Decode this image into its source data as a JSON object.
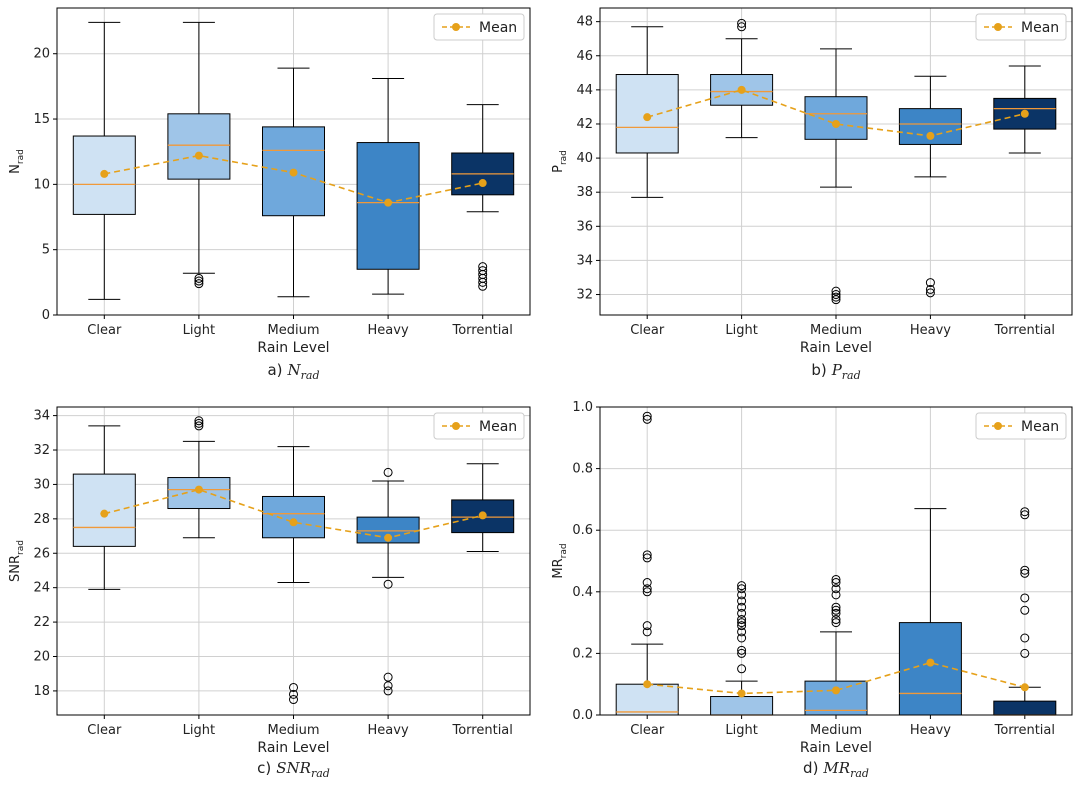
{
  "chart_data": [
    {
      "type": "box",
      "panel": "a",
      "caption_prefix": "a)",
      "caption_main": "N",
      "caption_sub": "rad",
      "ylabel_main": "N",
      "ylabel_sub": "rad",
      "xlabel": "Rain Level",
      "ylim": [
        0,
        23.5
      ],
      "yticks": [
        0,
        5,
        10,
        15,
        20
      ],
      "ytick_labels": [
        "0",
        "5",
        "10",
        "15",
        "20"
      ],
      "categories": [
        "Clear",
        "Light",
        "Medium",
        "Heavy",
        "Torrential"
      ],
      "legend": "Mean",
      "legend_position": "top-right",
      "grid": true,
      "boxes": [
        {
          "low": 1.2,
          "q1": 7.7,
          "median": 10.0,
          "q3": 13.7,
          "high": 22.4,
          "mean": 10.8,
          "outliers": []
        },
        {
          "low": 3.2,
          "q1": 10.4,
          "median": 13.0,
          "q3": 15.4,
          "high": 22.4,
          "mean": 12.2,
          "outliers": [
            2.4,
            2.6,
            2.8
          ]
        },
        {
          "low": 1.4,
          "q1": 7.6,
          "median": 12.6,
          "q3": 14.4,
          "high": 18.9,
          "mean": 10.9,
          "outliers": []
        },
        {
          "low": 1.6,
          "q1": 3.5,
          "median": 8.6,
          "q3": 13.2,
          "high": 18.1,
          "mean": 8.6,
          "outliers": []
        },
        {
          "low": 7.9,
          "q1": 9.2,
          "median": 10.8,
          "q3": 12.4,
          "high": 16.1,
          "mean": 10.1,
          "outliers": [
            2.2,
            2.5,
            2.8,
            3.1,
            3.4,
            3.7
          ]
        }
      ]
    },
    {
      "type": "box",
      "panel": "b",
      "caption_prefix": "b)",
      "caption_main": "P",
      "caption_sub": "rad",
      "ylabel_main": "P",
      "ylabel_sub": "rad",
      "xlabel": "Rain Level",
      "ylim": [
        30.8,
        48.8
      ],
      "yticks": [
        32,
        34,
        36,
        38,
        40,
        42,
        44,
        46,
        48
      ],
      "ytick_labels": [
        "32",
        "34",
        "36",
        "38",
        "40",
        "42",
        "44",
        "46",
        "48"
      ],
      "categories": [
        "Clear",
        "Light",
        "Medium",
        "Heavy",
        "Torrential"
      ],
      "legend": "Mean",
      "legend_position": "top-right",
      "grid": true,
      "boxes": [
        {
          "low": 37.7,
          "q1": 40.3,
          "median": 41.8,
          "q3": 44.9,
          "high": 47.7,
          "mean": 42.4,
          "outliers": []
        },
        {
          "low": 41.2,
          "q1": 43.1,
          "median": 43.9,
          "q3": 44.9,
          "high": 47.0,
          "mean": 44.0,
          "outliers": [
            47.7,
            47.9
          ]
        },
        {
          "low": 38.3,
          "q1": 41.1,
          "median": 42.6,
          "q3": 43.6,
          "high": 46.4,
          "mean": 42.0,
          "outliers": [
            31.7,
            31.85,
            32.0,
            32.2
          ]
        },
        {
          "low": 38.9,
          "q1": 40.8,
          "median": 42.0,
          "q3": 42.9,
          "high": 44.8,
          "mean": 41.3,
          "outliers": [
            32.1,
            32.3,
            32.7
          ]
        },
        {
          "low": 40.3,
          "q1": 41.7,
          "median": 42.9,
          "q3": 43.5,
          "high": 45.4,
          "mean": 42.6,
          "outliers": []
        }
      ]
    },
    {
      "type": "box",
      "panel": "c",
      "caption_prefix": "c)",
      "caption_main": "SNR",
      "caption_sub": "rad",
      "ylabel_main": "SNR",
      "ylabel_sub": "rad",
      "xlabel": "Rain Level",
      "ylim": [
        16.6,
        34.5
      ],
      "yticks": [
        18,
        20,
        22,
        24,
        26,
        28,
        30,
        32,
        34
      ],
      "ytick_labels": [
        "18",
        "20",
        "22",
        "24",
        "26",
        "28",
        "30",
        "32",
        "34"
      ],
      "categories": [
        "Clear",
        "Light",
        "Medium",
        "Heavy",
        "Torrential"
      ],
      "legend": "Mean",
      "legend_position": "top-right",
      "grid": true,
      "boxes": [
        {
          "low": 23.9,
          "q1": 26.4,
          "median": 27.5,
          "q3": 30.6,
          "high": 33.4,
          "mean": 28.3,
          "outliers": []
        },
        {
          "low": 26.9,
          "q1": 28.6,
          "median": 29.7,
          "q3": 30.4,
          "high": 32.5,
          "mean": 29.7,
          "outliers": [
            33.4,
            33.55,
            33.7
          ]
        },
        {
          "low": 24.3,
          "q1": 26.9,
          "median": 28.3,
          "q3": 29.3,
          "high": 32.2,
          "mean": 27.8,
          "outliers": [
            17.5,
            17.8,
            18.2
          ]
        },
        {
          "low": 24.6,
          "q1": 26.6,
          "median": 27.3,
          "q3": 28.1,
          "high": 30.2,
          "mean": 26.9,
          "outliers": [
            30.7,
            24.2,
            18.0,
            18.3,
            18.8
          ]
        },
        {
          "low": 26.1,
          "q1": 27.2,
          "median": 28.1,
          "q3": 29.1,
          "high": 31.2,
          "mean": 28.2,
          "outliers": []
        }
      ]
    },
    {
      "type": "box",
      "panel": "d",
      "caption_prefix": "d)",
      "caption_main": "MR",
      "caption_sub": "rad",
      "ylabel_main": "MR",
      "ylabel_sub": "rad",
      "xlabel": "Rain Level",
      "ylim": [
        0,
        1.0
      ],
      "yticks": [
        0,
        0.2,
        0.4,
        0.6,
        0.8,
        1.0
      ],
      "ytick_labels": [
        "0.0",
        "0.2",
        "0.4",
        "0.6",
        "0.8",
        "1.0"
      ],
      "categories": [
        "Clear",
        "Light",
        "Medium",
        "Heavy",
        "Torrential"
      ],
      "legend": "Mean",
      "legend_position": "top-right",
      "grid": true,
      "boxes": [
        {
          "low": 0,
          "q1": 0,
          "median": 0.01,
          "q3": 0.1,
          "high": 0.23,
          "mean": 0.1,
          "outliers": [
            0.27,
            0.29,
            0.4,
            0.41,
            0.43,
            0.51,
            0.52,
            0.96,
            0.97
          ]
        },
        {
          "low": 0,
          "q1": 0,
          "median": 0.0,
          "q3": 0.06,
          "high": 0.11,
          "mean": 0.07,
          "outliers": [
            0.15,
            0.2,
            0.21,
            0.25,
            0.27,
            0.29,
            0.3,
            0.31,
            0.33,
            0.35,
            0.37,
            0.39,
            0.41,
            0.42
          ]
        },
        {
          "low": 0,
          "q1": 0,
          "median": 0.015,
          "q3": 0.11,
          "high": 0.27,
          "mean": 0.08,
          "outliers": [
            0.3,
            0.31,
            0.33,
            0.34,
            0.35,
            0.39,
            0.41,
            0.43,
            0.44
          ]
        },
        {
          "low": 0,
          "q1": 0,
          "median": 0.07,
          "q3": 0.3,
          "high": 0.67,
          "mean": 0.17,
          "outliers": []
        },
        {
          "low": 0,
          "q1": 0,
          "median": 0.0,
          "q3": 0.045,
          "high": 0.09,
          "mean": 0.09,
          "outliers": [
            0.2,
            0.25,
            0.34,
            0.38,
            0.46,
            0.47,
            0.65,
            0.66
          ]
        }
      ]
    }
  ],
  "colors": {
    "boxes": [
      "#cfe2f3",
      "#9fc5e8",
      "#6fa8dc",
      "#3d85c6",
      "#0b3466"
    ],
    "median": "#f0993a",
    "mean": "#e6a11a",
    "grid": "#d0d0d0"
  }
}
